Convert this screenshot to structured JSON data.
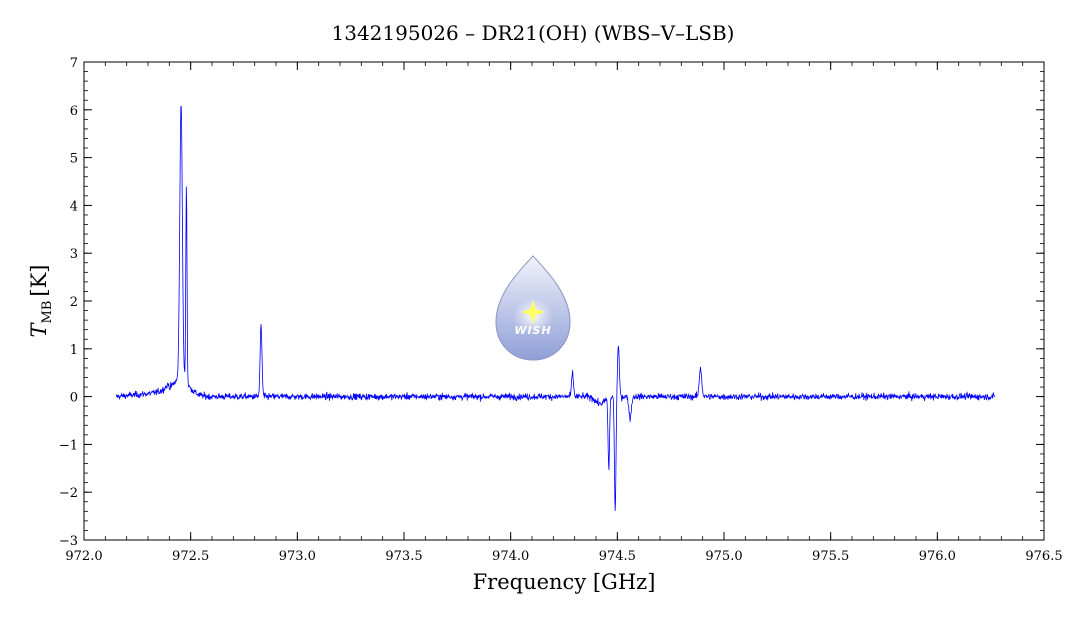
{
  "chart_data": {
    "type": "line",
    "title": "1342195026 – DR21(OH) (WBS–V–LSB)",
    "xlabel": "Frequency [GHz]",
    "ylabel_symbol": "T",
    "ylabel_subscript": "MB",
    "ylabel_unit": "[K]",
    "xlim": [
      972.0,
      976.5
    ],
    "ylim": [
      -3,
      7
    ],
    "x_ticks": [
      972.0,
      972.5,
      973.0,
      973.5,
      974.0,
      974.5,
      975.0,
      975.5,
      976.0,
      976.5
    ],
    "x_tick_labels": [
      "972.0",
      "972.5",
      "973.0",
      "973.5",
      "974.0",
      "974.5",
      "975.0",
      "975.5",
      "976.0",
      "976.5"
    ],
    "y_ticks": [
      -3,
      -2,
      -1,
      0,
      1,
      2,
      3,
      4,
      5,
      6,
      7
    ],
    "y_tick_labels": [
      "−3",
      "−2",
      "−1",
      "0",
      "1",
      "2",
      "3",
      "4",
      "5",
      "6",
      "7"
    ],
    "grid": false,
    "series_color": "#0000ff",
    "series": [
      {
        "x_range": [
          972.15,
          976.27
        ],
        "baseline_noise": 0.08,
        "features": [
          {
            "type": "emission",
            "center": 972.455,
            "peak": 5.8
          },
          {
            "type": "emission",
            "center": 972.48,
            "peak": 4.2
          },
          {
            "type": "emission",
            "center": 972.83,
            "peak": 1.5
          },
          {
            "type": "emission",
            "center": 974.29,
            "peak": 0.5
          },
          {
            "type": "absorption",
            "center": 974.46,
            "peak": -1.5
          },
          {
            "type": "absorption",
            "center": 974.49,
            "peak": -2.4
          },
          {
            "type": "emission",
            "center": 974.505,
            "peak": 1.05
          },
          {
            "type": "absorption",
            "center": 974.56,
            "peak": -0.45
          },
          {
            "type": "emission",
            "center": 974.89,
            "peak": 0.6
          }
        ]
      }
    ]
  },
  "logo": {
    "text": "WISH",
    "color_top": "#f2f2fa",
    "color_bottom": "#8fa0d8",
    "star_color": "#ffff66"
  }
}
